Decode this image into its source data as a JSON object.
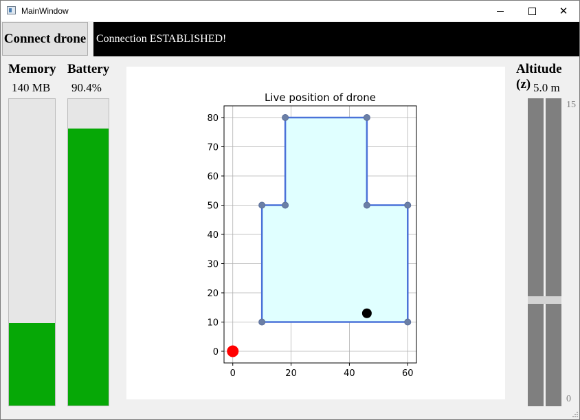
{
  "window": {
    "title": "MainWindow"
  },
  "toolbar": {
    "connect_label": "Connect drone",
    "status_text": "Connection ESTABLISHED!"
  },
  "memory": {
    "label": "Memory",
    "value": "140 MB",
    "level": 0.27,
    "color": "#06a806"
  },
  "battery": {
    "label": "Battery",
    "value": "90.4%",
    "level": 0.904,
    "color": "#06a806"
  },
  "altitude": {
    "label": "Altitude (z)",
    "value": "5.0 m",
    "max_label": "15",
    "min_label": "0",
    "level": 0.34
  },
  "chart_data": {
    "type": "scatter",
    "title": "Live position of drone",
    "xlabel": "",
    "ylabel": "",
    "xlim": [
      -3,
      63
    ],
    "ylim": [
      -4,
      84
    ],
    "x_ticks": [
      0,
      20,
      40,
      60
    ],
    "y_ticks": [
      0,
      10,
      20,
      30,
      40,
      50,
      60,
      70,
      80
    ],
    "grid": true,
    "boundary": {
      "fill": "#e0ffff",
      "stroke": "#4a72d8",
      "points": [
        [
          10,
          10
        ],
        [
          60,
          10
        ],
        [
          60,
          50
        ],
        [
          46,
          50
        ],
        [
          46,
          80
        ],
        [
          18,
          80
        ],
        [
          18,
          50
        ],
        [
          10,
          50
        ]
      ]
    },
    "markers": [
      {
        "name": "origin",
        "x": 0,
        "y": 0,
        "color": "#ff0000"
      },
      {
        "name": "drone",
        "x": 46,
        "y": 13,
        "color": "#000000"
      }
    ]
  }
}
